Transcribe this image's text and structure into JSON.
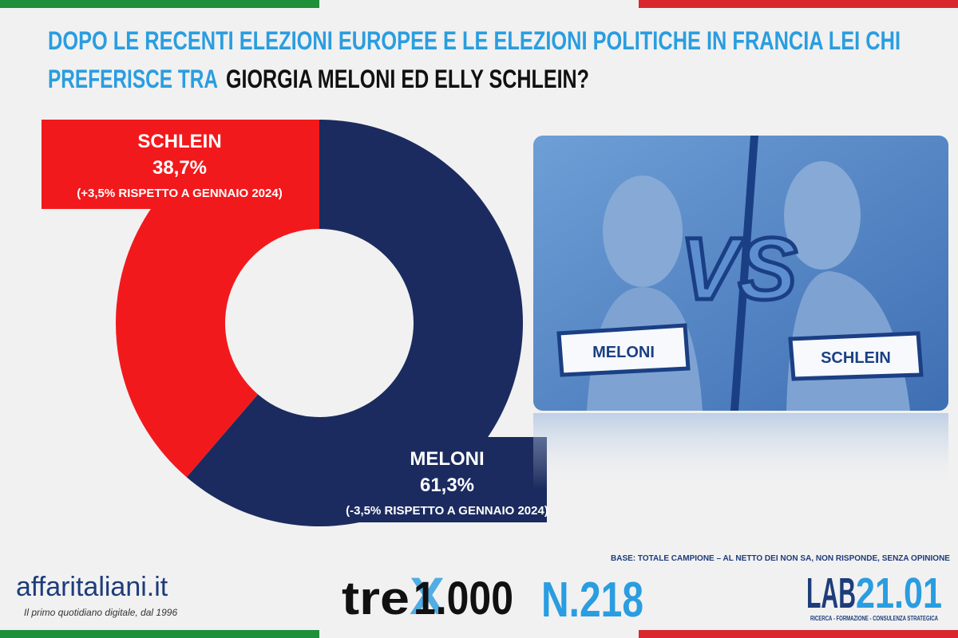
{
  "chart_data": {
    "type": "pie",
    "donut": true,
    "title": "DOPO LE RECENTI ELEZIONI EUROPEE E LE ELEZIONI POLITICHE IN FRANCIA LEI CHI",
    "title_line2": "PREFERISCE TRA",
    "title_highlight": "GIORGIA MELONI ED ELLY SCHLEIN?",
    "categories": [
      "SCHLEIN",
      "MELONI"
    ],
    "values": [
      38.7,
      61.3
    ],
    "value_labels": [
      "38,7%",
      "61,3%"
    ],
    "notes": [
      "(+3,5% RISPETTO A GENNAIO 2024)",
      "(-3,5% RISPETTO A GENNAIO 2024)"
    ],
    "colors": [
      "#f2191c",
      "#1b2b5f"
    ]
  },
  "image": {
    "left_label": "MELONI",
    "right_label": "SCHLEIN",
    "center": "VS"
  },
  "footer": {
    "brand": "affaritaliani.it",
    "tagline": "Il primo quotidiano digitale, dal 1996",
    "base_note": "BASE: TOTALE CAMPIONE – AL NETTO DEI NON SA, NON RISPONDE, SENZA OPINIONE",
    "trex_a": "tre",
    "trex_b": "1.000",
    "issue": "N.218",
    "lab_a": "LAB",
    "lab_b": "21.01",
    "lab_tagline": "RICERCA - FORMAZIONE - CONSULENZA STRATEGICA"
  }
}
